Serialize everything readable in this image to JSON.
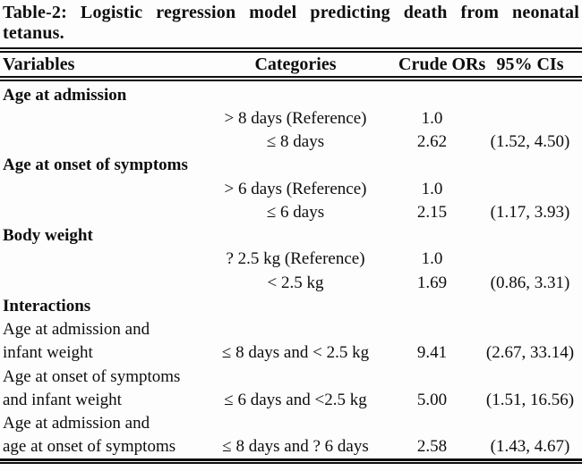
{
  "title": "Table-2: Logistic regression model predicting death from neonatal tetanus.",
  "colors": {
    "text": "#0d0d0d",
    "background": "#fdfdfd",
    "rule": "#0d0d0d"
  },
  "table": {
    "columns": [
      "Variables",
      "Categories",
      "Crude ORs",
      "95% CIs"
    ],
    "rows": [
      {
        "variable": "Age at admission",
        "section": true,
        "category": "",
        "or": "",
        "ci": ""
      },
      {
        "variable": "",
        "section": false,
        "category": "> 8 days (Reference)",
        "or": "1.0",
        "ci": ""
      },
      {
        "variable": "",
        "section": false,
        "category": "≤ 8 days",
        "or": "2.62",
        "ci": "(1.52, 4.50)"
      },
      {
        "variable": "Age at onset of symptoms",
        "section": true,
        "category": "",
        "or": "",
        "ci": ""
      },
      {
        "variable": "",
        "section": false,
        "category": "> 6 days (Reference)",
        "or": "1.0",
        "ci": ""
      },
      {
        "variable": "",
        "section": false,
        "category": "≤ 6 days",
        "or": "2.15",
        "ci": "(1.17, 3.93)"
      },
      {
        "variable": "Body weight",
        "section": true,
        "category": "",
        "or": "",
        "ci": ""
      },
      {
        "variable": "",
        "section": false,
        "category": "? 2.5 kg (Reference)",
        "or": "1.0",
        "ci": ""
      },
      {
        "variable": "",
        "section": false,
        "category": "< 2.5 kg",
        "or": "1.69",
        "ci": "(0.86, 3.31)"
      },
      {
        "variable": "Interactions",
        "section": true,
        "category": "",
        "or": "",
        "ci": ""
      },
      {
        "variable": "Age at admission and",
        "section": false,
        "category": "",
        "or": "",
        "ci": ""
      },
      {
        "variable": "infant weight",
        "section": false,
        "category": "≤ 8 days and < 2.5 kg",
        "or": "9.41",
        "ci": "(2.67, 33.14)"
      },
      {
        "variable": "Age at onset of symptoms",
        "section": false,
        "category": "",
        "or": "",
        "ci": ""
      },
      {
        "variable": "and infant weight",
        "section": false,
        "category": "≤ 6 days and <2.5 kg",
        "or": "5.00",
        "ci": "(1.51, 16.56)"
      },
      {
        "variable": "Age at admission and",
        "section": false,
        "category": "",
        "or": "",
        "ci": ""
      },
      {
        "variable": "age at onset of symptoms",
        "section": false,
        "category": "≤ 8 days and ? 6 days",
        "or": "2.58",
        "ci": "(1.43, 4.67)"
      }
    ]
  }
}
